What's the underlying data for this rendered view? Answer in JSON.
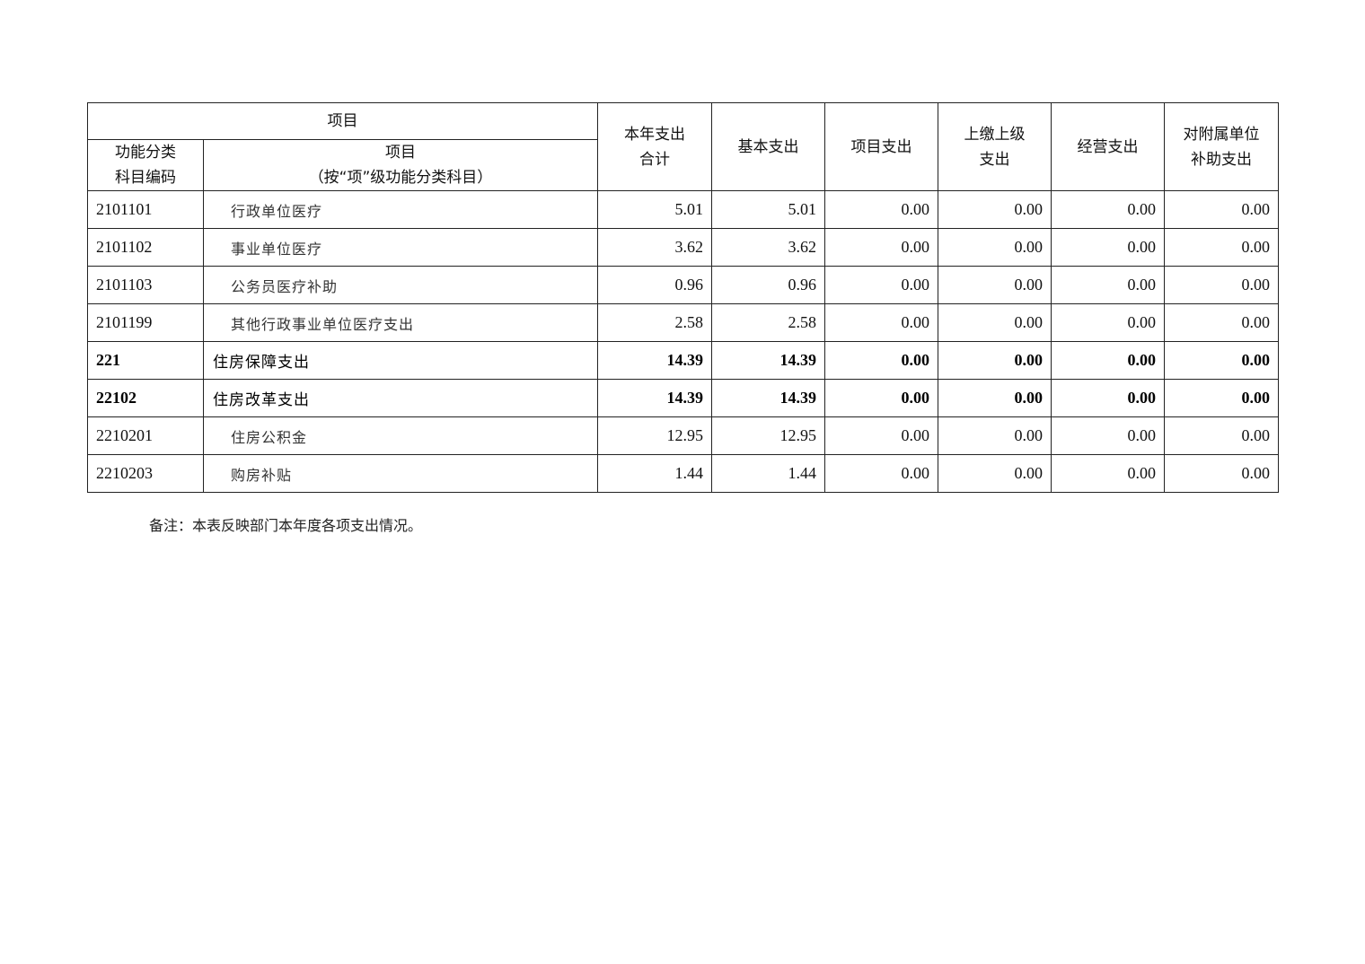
{
  "table": {
    "header": {
      "project_group": "项目",
      "code": "功能分类\n科目编码",
      "name": "项目\n（按“项”级功能分类科目）",
      "columns": [
        "本年支出\n合计",
        "基本支出",
        "项目支出",
        "上缴上级\n支出",
        "经营支出",
        "对附属单位\n补助支出"
      ]
    },
    "rows": [
      {
        "code": "2101101",
        "name": "行政单位医疗",
        "bold": false,
        "values": [
          "5.01",
          "5.01",
          "0.00",
          "0.00",
          "0.00",
          "0.00"
        ]
      },
      {
        "code": "2101102",
        "name": "事业单位医疗",
        "bold": false,
        "values": [
          "3.62",
          "3.62",
          "0.00",
          "0.00",
          "0.00",
          "0.00"
        ]
      },
      {
        "code": "2101103",
        "name": "公务员医疗补助",
        "bold": false,
        "values": [
          "0.96",
          "0.96",
          "0.00",
          "0.00",
          "0.00",
          "0.00"
        ]
      },
      {
        "code": "2101199",
        "name": "其他行政事业单位医疗支出",
        "bold": false,
        "values": [
          "2.58",
          "2.58",
          "0.00",
          "0.00",
          "0.00",
          "0.00"
        ]
      },
      {
        "code": "221",
        "name": "住房保障支出",
        "bold": true,
        "values": [
          "14.39",
          "14.39",
          "0.00",
          "0.00",
          "0.00",
          "0.00"
        ]
      },
      {
        "code": "22102",
        "name": "住房改革支出",
        "bold": true,
        "values": [
          "14.39",
          "14.39",
          "0.00",
          "0.00",
          "0.00",
          "0.00"
        ]
      },
      {
        "code": "2210201",
        "name": "住房公积金",
        "bold": false,
        "values": [
          "12.95",
          "12.95",
          "0.00",
          "0.00",
          "0.00",
          "0.00"
        ]
      },
      {
        "code": "2210203",
        "name": "购房补贴",
        "bold": false,
        "values": [
          "1.44",
          "1.44",
          "0.00",
          "0.00",
          "0.00",
          "0.00"
        ]
      }
    ]
  },
  "note": "备注：本表反映部门本年度各项支出情况。"
}
